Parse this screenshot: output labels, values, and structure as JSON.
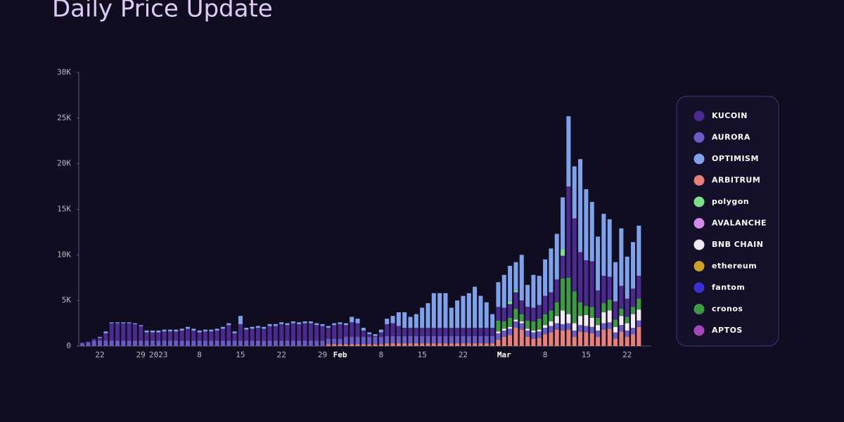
{
  "chart_data": {
    "type": "stacked_bar",
    "title": "Daily Price Update",
    "categories": [
      null,
      null,
      null,
      "22",
      null,
      null,
      null,
      null,
      null,
      null,
      "29",
      null,
      null,
      "2023",
      null,
      null,
      null,
      null,
      null,
      null,
      "8",
      null,
      null,
      null,
      null,
      null,
      null,
      "15",
      null,
      null,
      null,
      null,
      null,
      null,
      "22",
      null,
      null,
      null,
      null,
      null,
      null,
      "29",
      null,
      null,
      "Feb",
      null,
      null,
      null,
      null,
      null,
      null,
      "8",
      null,
      null,
      null,
      null,
      null,
      null,
      "15",
      null,
      null,
      null,
      null,
      null,
      null,
      "22",
      null,
      null,
      null,
      null,
      null,
      null,
      "Mar",
      null,
      null,
      null,
      null,
      null,
      null,
      "8",
      null,
      null,
      null,
      null,
      null,
      null,
      "15",
      null,
      null,
      null,
      null,
      null,
      null,
      "22",
      null,
      null
    ],
    "ylim": [
      0,
      30000
    ],
    "yticks": [
      {
        "value": 0,
        "label": "0"
      },
      {
        "value": 5000,
        "label": "5K"
      },
      {
        "value": 10000,
        "label": "10K"
      },
      {
        "value": 15000,
        "label": "15K"
      },
      {
        "value": 20000,
        "label": "20K"
      },
      {
        "value": 25000,
        "label": "25K"
      },
      {
        "value": 30000,
        "label": "30K"
      }
    ],
    "legend": "right",
    "series": [
      {
        "name": "KUCOIN",
        "color": "#4a2a8e",
        "values": [
          100,
          100,
          200,
          300,
          800,
          1900,
          1900,
          1900,
          1900,
          1800,
          1600,
          900,
          900,
          900,
          1000,
          1000,
          1000,
          1100,
          1300,
          1100,
          900,
          1000,
          1000,
          1100,
          1300,
          1700,
          800,
          1800,
          1200,
          1300,
          1400,
          1300,
          1600,
          1600,
          1800,
          1700,
          1900,
          1800,
          1900,
          1900,
          1700,
          1600,
          1200,
          1500,
          1600,
          1300,
          1600,
          1500,
          700,
          300,
          100,
          500,
          1300,
          1400,
          1100,
          900,
          900,
          900,
          900,
          900,
          900,
          900,
          900,
          900,
          900,
          900,
          900,
          900,
          900,
          900,
          900,
          1500,
          1500,
          1500,
          1800,
          1500,
          1500,
          1500,
          1500,
          2000,
          2000,
          2500,
          2500,
          10000,
          8000,
          5500,
          5000,
          5000,
          3000,
          3000,
          2500,
          2000,
          2500,
          2000,
          2000,
          2500
        ]
      },
      {
        "name": "AURORA",
        "color": "#6b5bc6",
        "values": [
          300,
          400,
          600,
          600,
          600,
          600,
          600,
          600,
          600,
          600,
          600,
          600,
          600,
          600,
          600,
          600,
          600,
          600,
          600,
          600,
          600,
          600,
          600,
          600,
          600,
          600,
          600,
          600,
          600,
          600,
          600,
          600,
          600,
          600,
          600,
          600,
          600,
          600,
          600,
          600,
          600,
          600,
          600,
          600,
          600,
          800,
          800,
          800,
          800,
          800,
          800,
          800,
          800,
          800,
          800,
          800,
          800,
          800,
          800,
          800,
          800,
          800,
          800,
          800,
          800,
          800,
          800,
          800,
          800,
          800,
          800,
          700,
          700,
          700,
          700,
          700,
          700,
          700,
          700,
          700,
          700,
          700,
          700,
          700,
          700,
          700,
          700,
          700,
          700,
          700,
          700,
          700,
          700,
          700,
          700,
          700
        ]
      },
      {
        "name": "OPTIMISM",
        "color": "#7fa2ea",
        "values": [
          0,
          0,
          0,
          100,
          200,
          100,
          100,
          100,
          100,
          100,
          100,
          200,
          200,
          200,
          200,
          200,
          200,
          200,
          200,
          200,
          200,
          200,
          200,
          200,
          200,
          200,
          200,
          900,
          200,
          200,
          200,
          200,
          200,
          200,
          200,
          200,
          200,
          200,
          200,
          200,
          200,
          200,
          200,
          200,
          200,
          200,
          600,
          500,
          300,
          200,
          200,
          300,
          600,
          800,
          1500,
          1700,
          1200,
          1500,
          2200,
          2700,
          3800,
          3800,
          3800,
          2200,
          3000,
          3500,
          3800,
          4500,
          3500,
          2800,
          1500,
          2700,
          3600,
          3900,
          3100,
          5000,
          2400,
          3600,
          3200,
          4000,
          4800,
          5000,
          5700,
          7700,
          5700,
          10200,
          7800,
          6500,
          5900,
          6800,
          6300,
          4300,
          6300,
          4600,
          5100,
          5500
        ]
      },
      {
        "name": "ARBITRUM",
        "color": "#e5807a",
        "values": [
          0,
          0,
          0,
          0,
          0,
          0,
          0,
          0,
          0,
          0,
          0,
          0,
          0,
          0,
          0,
          0,
          0,
          0,
          0,
          0,
          0,
          0,
          0,
          0,
          0,
          0,
          0,
          0,
          0,
          0,
          0,
          0,
          0,
          0,
          0,
          0,
          0,
          0,
          0,
          0,
          0,
          0,
          200,
          200,
          200,
          200,
          200,
          200,
          200,
          200,
          200,
          200,
          300,
          300,
          300,
          300,
          300,
          300,
          300,
          300,
          300,
          300,
          300,
          300,
          300,
          300,
          300,
          300,
          300,
          300,
          300,
          700,
          1000,
          1200,
          2000,
          1800,
          1000,
          800,
          900,
          1300,
          1500,
          1800,
          1700,
          1800,
          1000,
          1600,
          1500,
          1400,
          1000,
          1800,
          1900,
          800,
          1600,
          1000,
          1300,
          2100
        ]
      },
      {
        "name": "polygon",
        "color": "#7fe08c",
        "values": [
          0,
          0,
          0,
          0,
          0,
          0,
          0,
          0,
          0,
          0,
          0,
          0,
          0,
          0,
          0,
          0,
          0,
          0,
          0,
          0,
          0,
          0,
          0,
          0,
          0,
          0,
          0,
          0,
          0,
          0,
          0,
          0,
          0,
          0,
          0,
          0,
          0,
          0,
          0,
          0,
          0,
          0,
          0,
          0,
          0,
          0,
          0,
          0,
          0,
          0,
          0,
          0,
          0,
          0,
          0,
          0,
          0,
          0,
          0,
          0,
          0,
          0,
          0,
          0,
          0,
          0,
          0,
          0,
          0,
          0,
          0,
          0,
          0,
          300,
          200,
          0,
          0,
          0,
          0,
          0,
          0,
          0,
          700,
          0,
          0,
          0,
          0,
          0,
          0,
          0,
          0,
          0,
          0,
          0,
          0,
          0
        ]
      },
      {
        "name": "AVALANCHE",
        "color": "#d58ae8",
        "values": [
          0,
          0,
          0,
          0,
          0,
          0,
          0,
          0,
          0,
          0,
          0,
          0,
          0,
          0,
          0,
          0,
          0,
          0,
          0,
          0,
          0,
          0,
          0,
          0,
          0,
          0,
          0,
          0,
          0,
          0,
          0,
          0,
          0,
          0,
          0,
          0,
          0,
          0,
          0,
          0,
          0,
          0,
          0,
          0,
          0,
          0,
          0,
          0,
          0,
          0,
          0,
          0,
          0,
          0,
          0,
          0,
          0,
          0,
          0,
          0,
          0,
          0,
          0,
          0,
          0,
          0,
          0,
          0,
          0,
          0,
          0,
          0,
          0,
          0,
          0,
          0,
          0,
          0,
          0,
          0,
          0,
          0,
          0,
          0,
          0,
          0,
          0,
          0,
          0,
          0,
          0,
          0,
          0,
          0,
          0,
          0
        ]
      },
      {
        "name": "BNB CHAIN",
        "color": "#f2ebf6",
        "values": [
          0,
          0,
          0,
          0,
          0,
          0,
          0,
          0,
          0,
          0,
          0,
          0,
          0,
          0,
          0,
          0,
          0,
          0,
          0,
          0,
          0,
          0,
          0,
          0,
          0,
          0,
          0,
          0,
          0,
          0,
          0,
          0,
          0,
          0,
          0,
          0,
          0,
          0,
          0,
          0,
          0,
          0,
          0,
          0,
          0,
          0,
          0,
          0,
          0,
          0,
          0,
          0,
          0,
          0,
          0,
          0,
          0,
          0,
          0,
          0,
          0,
          0,
          0,
          0,
          0,
          0,
          0,
          0,
          0,
          0,
          0,
          200,
          200,
          200,
          200,
          200,
          200,
          200,
          200,
          300,
          500,
          800,
          1500,
          1000,
          800,
          1000,
          1200,
          1000,
          600,
          1200,
          1300,
          600,
          1000,
          800,
          1500,
          1200
        ]
      },
      {
        "name": "ethereum",
        "color": "#c9a227",
        "values": [
          0,
          0,
          0,
          0,
          0,
          0,
          0,
          0,
          0,
          0,
          0,
          0,
          0,
          0,
          0,
          0,
          0,
          0,
          0,
          0,
          0,
          0,
          0,
          0,
          0,
          0,
          0,
          0,
          0,
          0,
          0,
          0,
          0,
          0,
          0,
          0,
          0,
          0,
          0,
          0,
          0,
          0,
          0,
          0,
          0,
          0,
          0,
          0,
          0,
          0,
          0,
          0,
          0,
          0,
          0,
          0,
          0,
          0,
          0,
          0,
          0,
          0,
          0,
          0,
          0,
          0,
          0,
          0,
          0,
          0,
          0,
          0,
          0,
          0,
          0,
          0,
          0,
          0,
          0,
          0,
          0,
          0,
          0,
          0,
          0,
          0,
          0,
          0,
          0,
          0,
          0,
          0,
          0,
          0,
          0,
          0
        ]
      },
      {
        "name": "fantom",
        "color": "#3b30d2",
        "values": [
          0,
          0,
          0,
          0,
          0,
          0,
          0,
          0,
          0,
          0,
          0,
          0,
          0,
          0,
          0,
          0,
          0,
          0,
          0,
          0,
          0,
          0,
          0,
          0,
          0,
          0,
          0,
          0,
          0,
          0,
          0,
          0,
          0,
          0,
          0,
          0,
          0,
          0,
          0,
          0,
          0,
          0,
          0,
          0,
          0,
          0,
          0,
          0,
          0,
          0,
          0,
          0,
          0,
          0,
          0,
          0,
          0,
          0,
          0,
          0,
          0,
          0,
          0,
          0,
          0,
          0,
          0,
          0,
          0,
          0,
          0,
          0,
          0,
          0,
          0,
          0,
          0,
          0,
          0,
          0,
          0,
          0,
          0,
          0,
          0,
          0,
          0,
          0,
          0,
          0,
          0,
          0,
          0,
          0,
          0,
          0
        ]
      },
      {
        "name": "cronos",
        "color": "#3d9b44",
        "values": [
          0,
          0,
          0,
          0,
          0,
          0,
          0,
          0,
          0,
          0,
          0,
          0,
          0,
          0,
          0,
          0,
          0,
          0,
          0,
          0,
          0,
          0,
          0,
          0,
          0,
          0,
          0,
          0,
          0,
          0,
          0,
          0,
          0,
          0,
          0,
          0,
          0,
          0,
          0,
          0,
          0,
          0,
          0,
          0,
          0,
          0,
          0,
          0,
          0,
          0,
          0,
          0,
          0,
          0,
          0,
          0,
          0,
          0,
          0,
          0,
          0,
          0,
          0,
          0,
          0,
          0,
          0,
          0,
          0,
          0,
          0,
          1200,
          800,
          1000,
          1200,
          800,
          900,
          1000,
          1200,
          1200,
          1200,
          1500,
          3500,
          4000,
          3500,
          1500,
          1000,
          1200,
          800,
          1000,
          1200,
          800,
          800,
          700,
          800,
          1200
        ]
      },
      {
        "name": "APTOS",
        "color": "#a546ba",
        "values": [
          0,
          0,
          0,
          0,
          0,
          0,
          0,
          0,
          0,
          0,
          0,
          0,
          0,
          0,
          0,
          0,
          0,
          0,
          0,
          0,
          0,
          0,
          0,
          0,
          0,
          0,
          0,
          0,
          0,
          0,
          0,
          0,
          0,
          0,
          0,
          0,
          0,
          0,
          0,
          0,
          0,
          0,
          0,
          0,
          0,
          0,
          0,
          0,
          0,
          0,
          0,
          0,
          0,
          0,
          0,
          0,
          0,
          0,
          0,
          0,
          0,
          0,
          0,
          0,
          0,
          0,
          0,
          0,
          0,
          0,
          0,
          0,
          0,
          0,
          0,
          0,
          0,
          0,
          0,
          0,
          0,
          0,
          0,
          0,
          0,
          0,
          0,
          0,
          0,
          0,
          0,
          0,
          0,
          0,
          0,
          0
        ]
      }
    ]
  }
}
